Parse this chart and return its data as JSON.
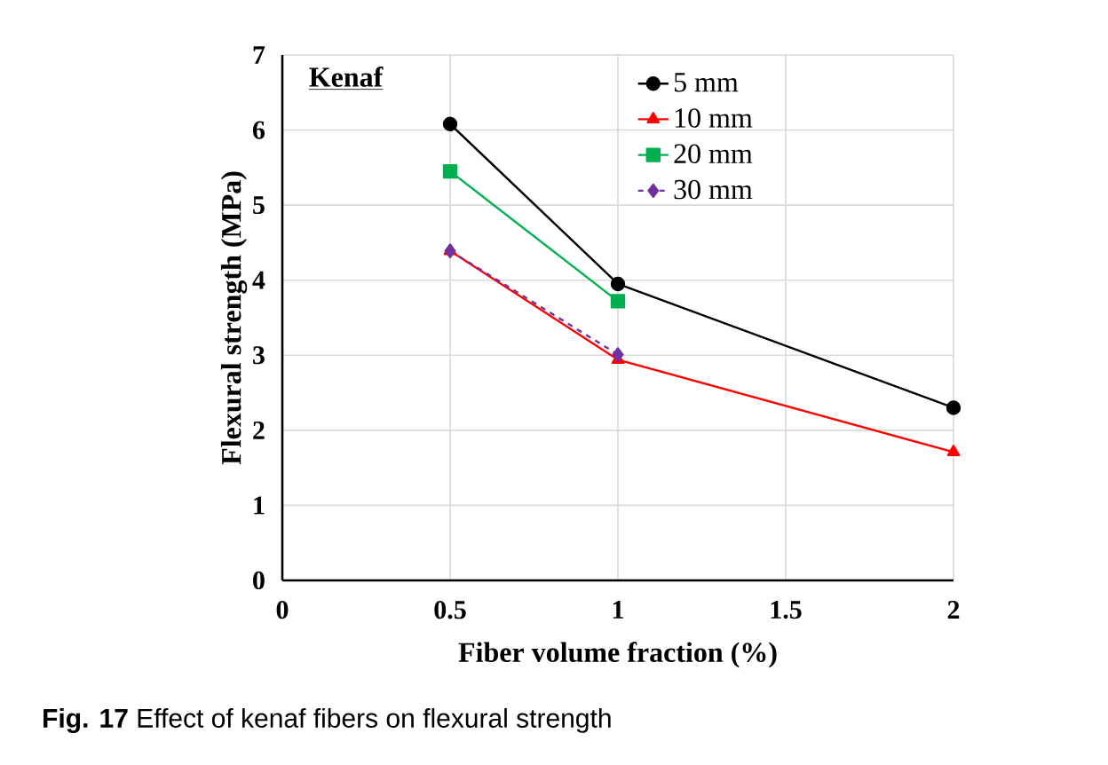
{
  "chart_data": {
    "type": "line",
    "xlabel": "Fiber volume fraction (%)",
    "ylabel": "Flexural strength (MPa)",
    "x": [
      0.5,
      1,
      2
    ],
    "series": [
      {
        "name": "5 mm",
        "color": "#000000",
        "marker": "circle",
        "line_style": "solid",
        "values": [
          6.08,
          3.95,
          2.3
        ]
      },
      {
        "name": "10 mm",
        "color": "#ff0000",
        "marker": "triangle",
        "line_style": "solid",
        "values": [
          4.39,
          2.94,
          1.71
        ]
      },
      {
        "name": "20 mm",
        "color": "#00b050",
        "marker": "square",
        "line_style": "solid",
        "values": [
          5.45,
          3.72,
          null
        ]
      },
      {
        "name": "30 mm",
        "color": "#7030a0",
        "marker": "diamond",
        "line_style": "dashed",
        "values": [
          4.39,
          3.01,
          null
        ]
      }
    ],
    "xlim": [
      0,
      2
    ],
    "ylim": [
      0,
      7
    ],
    "xticks": [
      0,
      0.5,
      1,
      1.5,
      2
    ],
    "yticks": [
      0,
      1,
      2,
      3,
      4,
      5,
      6,
      7
    ],
    "grid": true,
    "legend": "top right",
    "annotations": [
      "Kenaf",
      "**Fig. 17** Effect of kenaf fibers on flexural strength"
    ]
  }
}
